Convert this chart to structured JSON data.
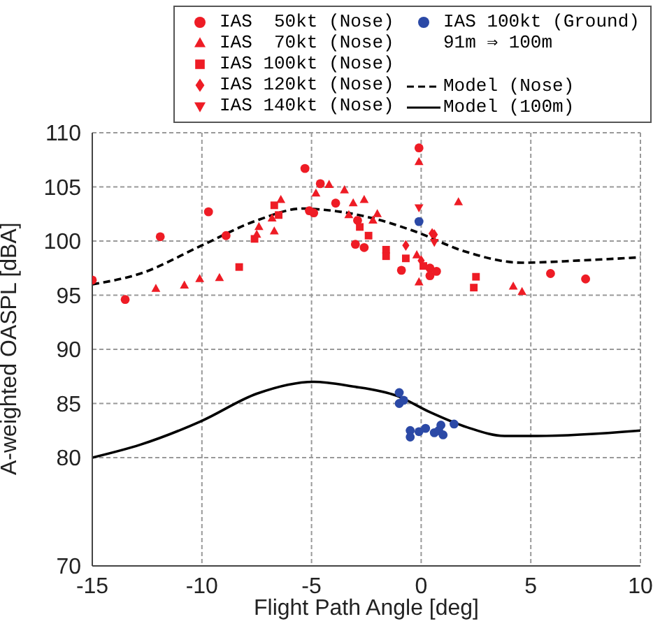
{
  "chart_data": {
    "type": "scatter",
    "xlabel": "Flight Path Angle [deg]",
    "ylabel": "A-weighted OASPL [dBA]",
    "xlim": [
      -15,
      10
    ],
    "xticks": [
      -15,
      -10,
      -5,
      0,
      5,
      10
    ],
    "ylim": [
      70,
      110
    ],
    "yticks": [
      70,
      80,
      85,
      90,
      95,
      100,
      105,
      110
    ],
    "grid": true,
    "legend": "top",
    "annotations": [
      "91m ⇒ 100m"
    ],
    "series": [
      {
        "name": "IAS  50kt (Nose)",
        "marker": "circle",
        "color": "#ee1c25",
        "x": [
          -15.0,
          -13.5,
          -11.9,
          -9.7,
          -8.9,
          -5.3,
          -4.6,
          -5.1,
          -4.9,
          -3.9,
          -2.9,
          -3.0,
          -2.6,
          -0.1,
          -0.9,
          0.4,
          0.4,
          0.7,
          5.9,
          7.5
        ],
        "values": [
          96.4,
          94.6,
          100.4,
          102.7,
          100.5,
          106.7,
          105.3,
          102.8,
          102.6,
          103.5,
          101.9,
          99.7,
          99.4,
          108.6,
          97.3,
          97.5,
          96.8,
          97.2,
          97.0,
          96.5
        ]
      },
      {
        "name": "IAS  70kt (Nose)",
        "marker": "triangle",
        "color": "#ee1c25",
        "x": [
          -12.1,
          -10.8,
          -10.1,
          -9.2,
          -7.4,
          -7.5,
          -6.7,
          -6.8,
          -6.4,
          -4.8,
          -4.2,
          -3.5,
          -3.1,
          -2.6,
          -3.3,
          -2.2,
          -2.0,
          -0.1,
          1.7,
          -0.2,
          -0.1,
          4.2,
          4.6
        ],
        "values": [
          95.6,
          95.9,
          96.5,
          96.6,
          101.3,
          100.6,
          100.9,
          102.1,
          103.8,
          104.4,
          105.2,
          104.7,
          103.5,
          103.8,
          102.4,
          101.9,
          102.5,
          107.3,
          103.6,
          98.7,
          96.2,
          95.8,
          95.3
        ]
      },
      {
        "name": "IAS 100kt (Nose)",
        "marker": "square",
        "color": "#ee1c25",
        "x": [
          -8.3,
          -7.6,
          -6.7,
          -6.5,
          -2.8,
          -2.4,
          -1.6,
          -1.6,
          -0.7,
          0.1,
          2.5,
          2.4
        ],
        "values": [
          97.6,
          100.2,
          103.3,
          102.4,
          101.3,
          100.5,
          99.2,
          98.6,
          98.4,
          97.7,
          96.7,
          95.7
        ]
      },
      {
        "name": "IAS 120kt (Nose)",
        "marker": "diamond",
        "color": "#ee1c25",
        "x": [
          0.5,
          0.6,
          -0.7,
          0.0
        ],
        "values": [
          100.7,
          100.6,
          99.6,
          98.2
        ]
      },
      {
        "name": "IAS 140kt (Nose)",
        "marker": "triangle_down",
        "color": "#ee1c25",
        "x": [
          -0.1,
          0.6
        ],
        "values": [
          103.1,
          99.9
        ]
      },
      {
        "name": "IAS 100kt (Ground)",
        "marker": "circle",
        "color": "#2b49a6",
        "x": [
          -0.1,
          -1.0,
          -1.0,
          -0.8,
          -0.5,
          -0.5,
          -0.1,
          0.2,
          0.6,
          0.9,
          0.8,
          1.0,
          1.5
        ],
        "values": [
          101.8,
          86.0,
          85.0,
          85.3,
          82.5,
          81.9,
          82.4,
          82.7,
          82.3,
          83.0,
          82.5,
          82.1,
          83.1
        ]
      },
      {
        "name": "Model (Nose)",
        "type": "line",
        "marker": "none",
        "line_style": "dashed",
        "color": "#000000",
        "x": [
          -15,
          -12.8,
          -10.0,
          -7.5,
          -5.4,
          -4.5,
          -2.4,
          -0.3,
          1.9,
          4.6,
          7.2,
          10
        ],
        "values": [
          96.0,
          97.0,
          99.6,
          101.9,
          103.0,
          102.9,
          102.2,
          100.9,
          99.1,
          98.0,
          98.2,
          98.5
        ]
      },
      {
        "name": "Model (100m)",
        "type": "line",
        "marker": "none",
        "line_style": "solid",
        "color": "#000000",
        "x": [
          -15,
          -12.8,
          -10.0,
          -7.5,
          -4.9,
          -3.2,
          -1.1,
          0.4,
          2.1,
          3.8,
          5.3,
          10
        ],
        "values": [
          80.0,
          81.2,
          83.4,
          85.9,
          87.0,
          86.6,
          85.7,
          84.2,
          82.8,
          82.0,
          82.0,
          82.5
        ]
      }
    ]
  }
}
